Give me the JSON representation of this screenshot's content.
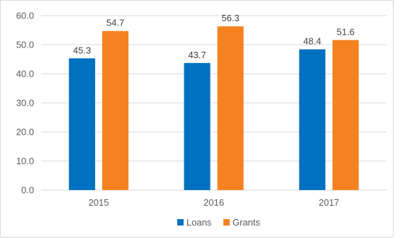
{
  "chart_data": {
    "type": "bar",
    "categories": [
      "2015",
      "2016",
      "2017"
    ],
    "series": [
      {
        "name": "Loans",
        "values": [
          45.3,
          43.7,
          48.4
        ],
        "labels": [
          "45.3",
          "43.7",
          "48.4"
        ],
        "color": "#0070C0"
      },
      {
        "name": "Grants",
        "values": [
          54.7,
          56.3,
          51.6
        ],
        "labels": [
          "54.7",
          "56.3",
          "51.6"
        ],
        "color": "#F58220"
      }
    ],
    "yticks": [
      0,
      10,
      20,
      30,
      40,
      50,
      60
    ],
    "ytick_labels": [
      "0.0",
      "10.0",
      "20.0",
      "30.0",
      "40.0",
      "50.0",
      "60.0"
    ],
    "ylim": [
      0,
      60
    ],
    "grid": true,
    "legend_position": "bottom",
    "gridline_color": "#d9d9d9"
  }
}
